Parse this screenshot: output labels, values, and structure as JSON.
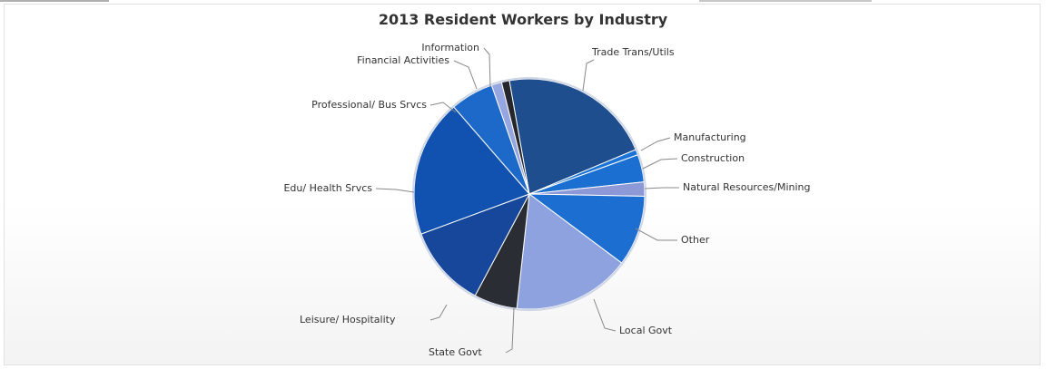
{
  "chart_data": {
    "type": "pie",
    "title": "2013 Resident Workers by Industry",
    "slices": [
      {
        "label": "Trade Trans/Utils",
        "value": 19.5,
        "color": "#1f4e8f"
      },
      {
        "label": "Manufacturing",
        "value": 0.7,
        "color": "#1a73d6"
      },
      {
        "label": "Construction",
        "value": 3.5,
        "color": "#1a6fd1"
      },
      {
        "label": "Natural Resources/Mining",
        "value": 1.8,
        "color": "#8c99d6"
      },
      {
        "label": "Other",
        "value": 9.0,
        "color": "#1c6fd0"
      },
      {
        "label": "Local Govt",
        "value": 15.0,
        "color": "#8ea2df"
      },
      {
        "label": "State Govt",
        "value": 5.5,
        "color": "#2a2d33"
      },
      {
        "label": "Leisure/ Hospitality",
        "value": 10.5,
        "color": "#17479a"
      },
      {
        "label": "Edu/ Health Srvcs",
        "value": 17.5,
        "color": "#1152b0"
      },
      {
        "label": "Professional/ Bus Srvcs",
        "value": 5.5,
        "color": "#1d69c9"
      },
      {
        "label": "Financial Activities",
        "value": 1.3,
        "color": "#96a6e0"
      },
      {
        "label": "Information",
        "value": 1.0,
        "color": "#25272c"
      }
    ],
    "start_angle_deg": -10,
    "legend": "none"
  }
}
